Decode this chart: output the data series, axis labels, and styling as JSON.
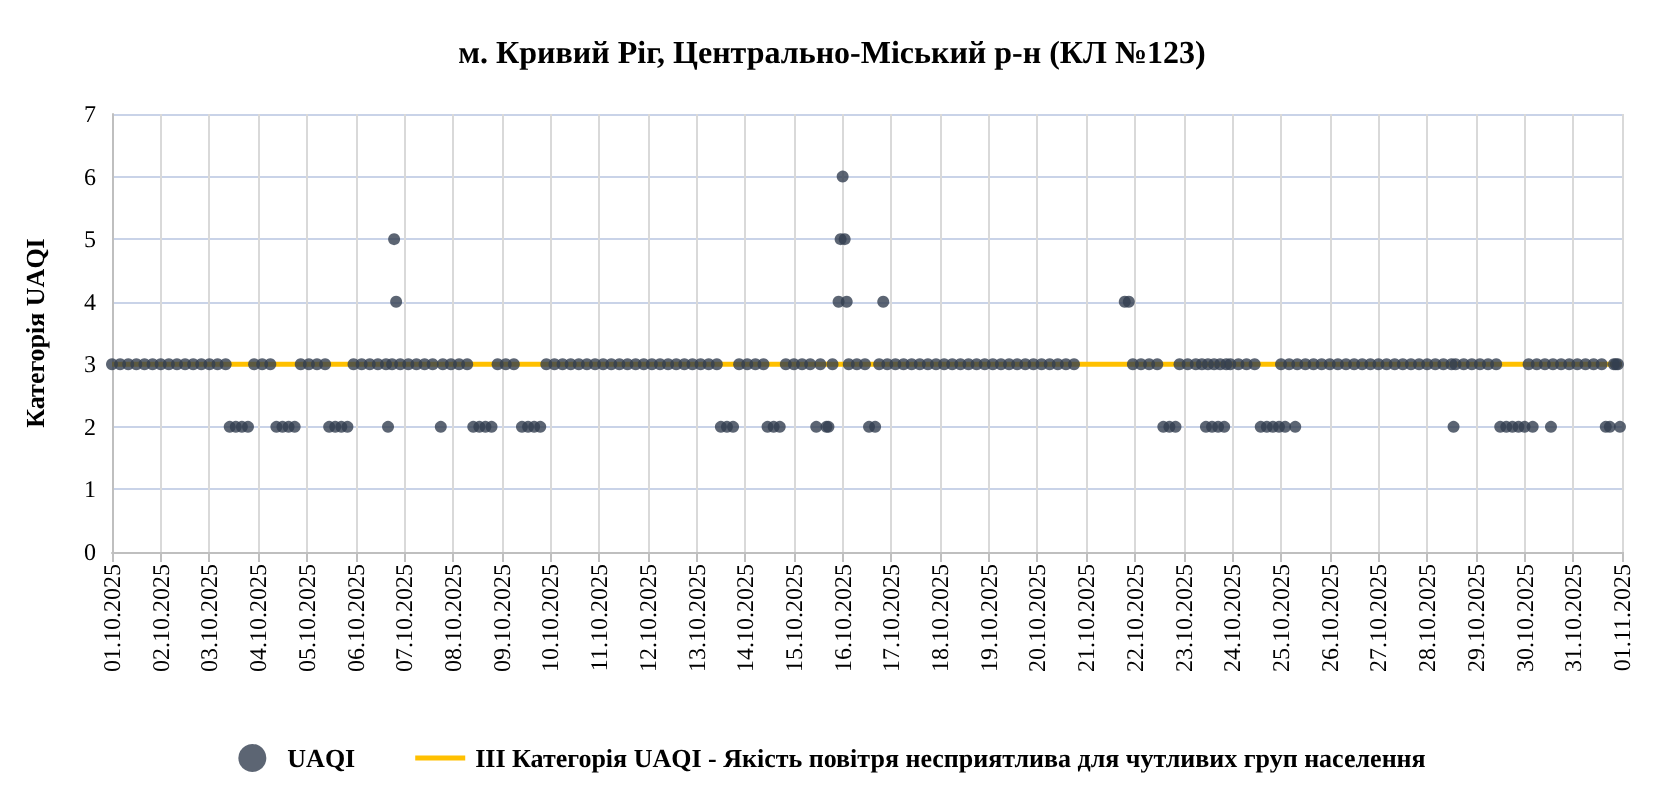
{
  "chart_data": {
    "type": "scatter",
    "title": "м. Кривий Ріг, Центрально-Міський р-н (КЛ №123)",
    "ylabel": "Категорія UAQI",
    "xlim": [
      "2025-10-01",
      "2025-11-01"
    ],
    "xticks": [
      {
        "value": "2025-10-01",
        "label": "01.10.2025"
      },
      {
        "value": "2025-10-02",
        "label": "02.10.2025"
      },
      {
        "value": "2025-10-03",
        "label": "03.10.2025"
      },
      {
        "value": "2025-10-04",
        "label": "04.10.2025"
      },
      {
        "value": "2025-10-05",
        "label": "05.10.2025"
      },
      {
        "value": "2025-10-06",
        "label": "06.10.2025"
      },
      {
        "value": "2025-10-07",
        "label": "07.10.2025"
      },
      {
        "value": "2025-10-08",
        "label": "08.10.2025"
      },
      {
        "value": "2025-10-09",
        "label": "09.10.2025"
      },
      {
        "value": "2025-10-10",
        "label": "10.10.2025"
      },
      {
        "value": "2025-10-11",
        "label": "11.10.2025"
      },
      {
        "value": "2025-10-12",
        "label": "12.10.2025"
      },
      {
        "value": "2025-10-13",
        "label": "13.10.2025"
      },
      {
        "value": "2025-10-14",
        "label": "14.10.2025"
      },
      {
        "value": "2025-10-15",
        "label": "15.10.2025"
      },
      {
        "value": "2025-10-16",
        "label": "16.10.2025"
      },
      {
        "value": "2025-10-17",
        "label": "17.10.2025"
      },
      {
        "value": "2025-10-18",
        "label": "18.10.2025"
      },
      {
        "value": "2025-10-19",
        "label": "19.10.2025"
      },
      {
        "value": "2025-10-20",
        "label": "20.10.2025"
      },
      {
        "value": "2025-10-21",
        "label": "21.10.2025"
      },
      {
        "value": "2025-10-22",
        "label": "22.10.2025"
      },
      {
        "value": "2025-10-23",
        "label": "23.10.2025"
      },
      {
        "value": "2025-10-24",
        "label": "24.10.2025"
      },
      {
        "value": "2025-10-25",
        "label": "25.10.2025"
      },
      {
        "value": "2025-10-26",
        "label": "26.10.2025"
      },
      {
        "value": "2025-10-27",
        "label": "27.10.2025"
      },
      {
        "value": "2025-10-28",
        "label": "28.10.2025"
      },
      {
        "value": "2025-10-29",
        "label": "29.10.2025"
      },
      {
        "value": "2025-10-30",
        "label": "30.10.2025"
      },
      {
        "value": "2025-10-31",
        "label": "31.10.2025"
      },
      {
        "value": "2025-11-01",
        "label": "01.11.2025"
      }
    ],
    "ylim": [
      0,
      7
    ],
    "yticks": [
      0,
      1,
      2,
      3,
      4,
      5,
      6,
      7
    ],
    "grid": true,
    "legend": "bottom",
    "marker": "circle",
    "ref_lines": [
      {
        "axis": "y",
        "value": 3,
        "label": "ІІІ Категорія UAQI - Якість повітря несприятлива для чутливих груп населення",
        "color": "#ffc000"
      }
    ],
    "series": [
      {
        "name": "UAQI",
        "color": "#333f50",
        "x": [
          "2025-10-01T00:00",
          "2025-10-01T04:00",
          "2025-10-01T08:00",
          "2025-10-01T12:00",
          "2025-10-01T16:00",
          "2025-10-01T20:00",
          "2025-10-02T00:00",
          "2025-10-02T04:00",
          "2025-10-02T08:00",
          "2025-10-02T12:00",
          "2025-10-02T16:00",
          "2025-10-02T20:00",
          "2025-10-03T00:00",
          "2025-10-03T04:00",
          "2025-10-03T08:00",
          "2025-10-03T10:00",
          "2025-10-03T13:00",
          "2025-10-03T16:00",
          "2025-10-03T19:00",
          "2025-10-03T22:00",
          "2025-10-04T02:00",
          "2025-10-04T06:00",
          "2025-10-04T09:00",
          "2025-10-04T12:00",
          "2025-10-04T15:00",
          "2025-10-04T18:00",
          "2025-10-04T21:00",
          "2025-10-05T01:00",
          "2025-10-05T05:00",
          "2025-10-05T09:00",
          "2025-10-05T11:00",
          "2025-10-05T14:00",
          "2025-10-05T17:00",
          "2025-10-05T20:00",
          "2025-10-05T23:00",
          "2025-10-06T03:00",
          "2025-10-06T07:00",
          "2025-10-06T11:00",
          "2025-10-06T15:00",
          "2025-10-06T16:00",
          "2025-10-06T18:00",
          "2025-10-06T19:00",
          "2025-10-06T20:00",
          "2025-10-06T22:00",
          "2025-10-07T02:00",
          "2025-10-07T06:00",
          "2025-10-07T10:00",
          "2025-10-07T14:00",
          "2025-10-07T18:00",
          "2025-10-07T19:00",
          "2025-10-07T23:00",
          "2025-10-08T03:00",
          "2025-10-08T07:00",
          "2025-10-08T10:00",
          "2025-10-08T13:00",
          "2025-10-08T16:00",
          "2025-10-08T19:00",
          "2025-10-08T22:00",
          "2025-10-09T02:00",
          "2025-10-09T06:00",
          "2025-10-09T10:00",
          "2025-10-09T13:00",
          "2025-10-09T16:00",
          "2025-10-09T19:00",
          "2025-10-09T22:00",
          "2025-10-10T02:00",
          "2025-10-10T06:00",
          "2025-10-10T10:00",
          "2025-10-10T14:00",
          "2025-10-10T18:00",
          "2025-10-10T22:00",
          "2025-10-11T02:00",
          "2025-10-11T06:00",
          "2025-10-11T10:00",
          "2025-10-11T14:00",
          "2025-10-11T18:00",
          "2025-10-11T22:00",
          "2025-10-12T02:00",
          "2025-10-12T06:00",
          "2025-10-12T10:00",
          "2025-10-12T14:00",
          "2025-10-12T18:00",
          "2025-10-12T22:00",
          "2025-10-13T02:00",
          "2025-10-13T06:00",
          "2025-10-13T10:00",
          "2025-10-13T12:00",
          "2025-10-13T15:00",
          "2025-10-13T18:00",
          "2025-10-13T21:00",
          "2025-10-14T01:00",
          "2025-10-14T05:00",
          "2025-10-14T09:00",
          "2025-10-14T11:00",
          "2025-10-14T14:00",
          "2025-10-14T17:00",
          "2025-10-14T20:00",
          "2025-10-15T00:00",
          "2025-10-15T04:00",
          "2025-10-15T08:00",
          "2025-10-15T11:00",
          "2025-10-15T13:00",
          "2025-10-15T16:00",
          "2025-10-15T17:00",
          "2025-10-15T19:00",
          "2025-10-15T22:00",
          "2025-10-15T23:00",
          "2025-10-16T00:00",
          "2025-10-16T01:00",
          "2025-10-16T02:00",
          "2025-10-16T03:00",
          "2025-10-16T07:00",
          "2025-10-16T11:00",
          "2025-10-16T13:00",
          "2025-10-16T16:00",
          "2025-10-16T18:00",
          "2025-10-16T20:00",
          "2025-10-16T22:00",
          "2025-10-17T02:00",
          "2025-10-17T06:00",
          "2025-10-17T10:00",
          "2025-10-17T14:00",
          "2025-10-17T18:00",
          "2025-10-17T22:00",
          "2025-10-18T02:00",
          "2025-10-18T06:00",
          "2025-10-18T10:00",
          "2025-10-18T14:00",
          "2025-10-18T18:00",
          "2025-10-18T22:00",
          "2025-10-19T02:00",
          "2025-10-19T06:00",
          "2025-10-19T10:00",
          "2025-10-19T14:00",
          "2025-10-19T18:00",
          "2025-10-19T22:00",
          "2025-10-20T02:00",
          "2025-10-20T06:00",
          "2025-10-20T10:00",
          "2025-10-20T14:00",
          "2025-10-20T18:00",
          "2025-10-21T19:00",
          "2025-10-21T21:00",
          "2025-10-21T23:00",
          "2025-10-22T03:00",
          "2025-10-22T07:00",
          "2025-10-22T11:00",
          "2025-10-22T14:00",
          "2025-10-22T17:00",
          "2025-10-22T20:00",
          "2025-10-22T22:00",
          "2025-10-23T02:00",
          "2025-10-23T06:00",
          "2025-10-23T09:00",
          "2025-10-23T11:00",
          "2025-10-23T12:00",
          "2025-10-23T14:00",
          "2025-10-23T15:00",
          "2025-10-23T17:00",
          "2025-10-23T18:00",
          "2025-10-23T20:00",
          "2025-10-23T21:00",
          "2025-10-23T23:00",
          "2025-10-24T03:00",
          "2025-10-24T07:00",
          "2025-10-24T11:00",
          "2025-10-24T14:00",
          "2025-10-24T17:00",
          "2025-10-24T20:00",
          "2025-10-24T23:00",
          "2025-10-25T00:00",
          "2025-10-25T02:00",
          "2025-10-25T04:00",
          "2025-10-25T07:00",
          "2025-10-25T08:00",
          "2025-10-25T12:00",
          "2025-10-25T16:00",
          "2025-10-25T20:00",
          "2025-10-26T00:00",
          "2025-10-26T04:00",
          "2025-10-26T08:00",
          "2025-10-26T12:00",
          "2025-10-26T16:00",
          "2025-10-26T20:00",
          "2025-10-27T00:00",
          "2025-10-27T04:00",
          "2025-10-27T08:00",
          "2025-10-27T12:00",
          "2025-10-27T16:00",
          "2025-10-27T20:00",
          "2025-10-28T00:00",
          "2025-10-28T04:00",
          "2025-10-28T08:00",
          "2025-10-28T12:00",
          "2025-10-28T13:00",
          "2025-10-28T14:00",
          "2025-10-28T18:00",
          "2025-10-28T22:00",
          "2025-10-29T02:00",
          "2025-10-29T06:00",
          "2025-10-29T10:00",
          "2025-10-29T12:00",
          "2025-10-29T15:00",
          "2025-10-29T18:00",
          "2025-10-29T21:00",
          "2025-10-30T00:00",
          "2025-10-30T02:00",
          "2025-10-30T04:00",
          "2025-10-30T06:00",
          "2025-10-30T10:00",
          "2025-10-30T13:00",
          "2025-10-30T14:00",
          "2025-10-30T18:00",
          "2025-10-30T22:00",
          "2025-10-31T02:00",
          "2025-10-31T06:00",
          "2025-10-31T10:00",
          "2025-10-31T14:00",
          "2025-10-31T16:00",
          "2025-10-31T18:00",
          "2025-10-31T20:00",
          "2025-10-31T21:00",
          "2025-10-31T22:00",
          "2025-10-31T23:00"
        ],
        "values": [
          3,
          3,
          3,
          3,
          3,
          3,
          3,
          3,
          3,
          3,
          3,
          3,
          3,
          3,
          3,
          2,
          2,
          2,
          2,
          3,
          3,
          3,
          2,
          2,
          2,
          2,
          3,
          3,
          3,
          3,
          2,
          2,
          2,
          2,
          3,
          3,
          3,
          3,
          3,
          2,
          3,
          5,
          4,
          3,
          3,
          3,
          3,
          3,
          2,
          3,
          3,
          3,
          3,
          2,
          2,
          2,
          2,
          3,
          3,
          3,
          2,
          2,
          2,
          2,
          3,
          3,
          3,
          3,
          3,
          3,
          3,
          3,
          3,
          3,
          3,
          3,
          3,
          3,
          3,
          3,
          3,
          3,
          3,
          3,
          3,
          3,
          2,
          2,
          2,
          3,
          3,
          3,
          3,
          2,
          2,
          2,
          3,
          3,
          3,
          3,
          2,
          3,
          2,
          2,
          3,
          4,
          5,
          6,
          5,
          4,
          3,
          3,
          3,
          2,
          2,
          3,
          4,
          3,
          3,
          3,
          3,
          3,
          3,
          3,
          3,
          3,
          3,
          3,
          3,
          3,
          3,
          3,
          3,
          3,
          3,
          3,
          3,
          3,
          3,
          3,
          3,
          4,
          4,
          3,
          3,
          3,
          3,
          2,
          2,
          2,
          3,
          3,
          3,
          3,
          2,
          3,
          2,
          3,
          2,
          3,
          2,
          3,
          3,
          3,
          3,
          3,
          2,
          2,
          2,
          2,
          3,
          2,
          3,
          2,
          3,
          3,
          3,
          3,
          3,
          3,
          3,
          3,
          3,
          3,
          3,
          3,
          3,
          3,
          3,
          3,
          3,
          3,
          3,
          3,
          2,
          3,
          3,
          3,
          3,
          3,
          3,
          2,
          2,
          2,
          2,
          2,
          3,
          2,
          3,
          3,
          2,
          3,
          3,
          3,
          3,
          3,
          3,
          3,
          2,
          2,
          3,
          3,
          3,
          2
        ]
      }
    ]
  }
}
